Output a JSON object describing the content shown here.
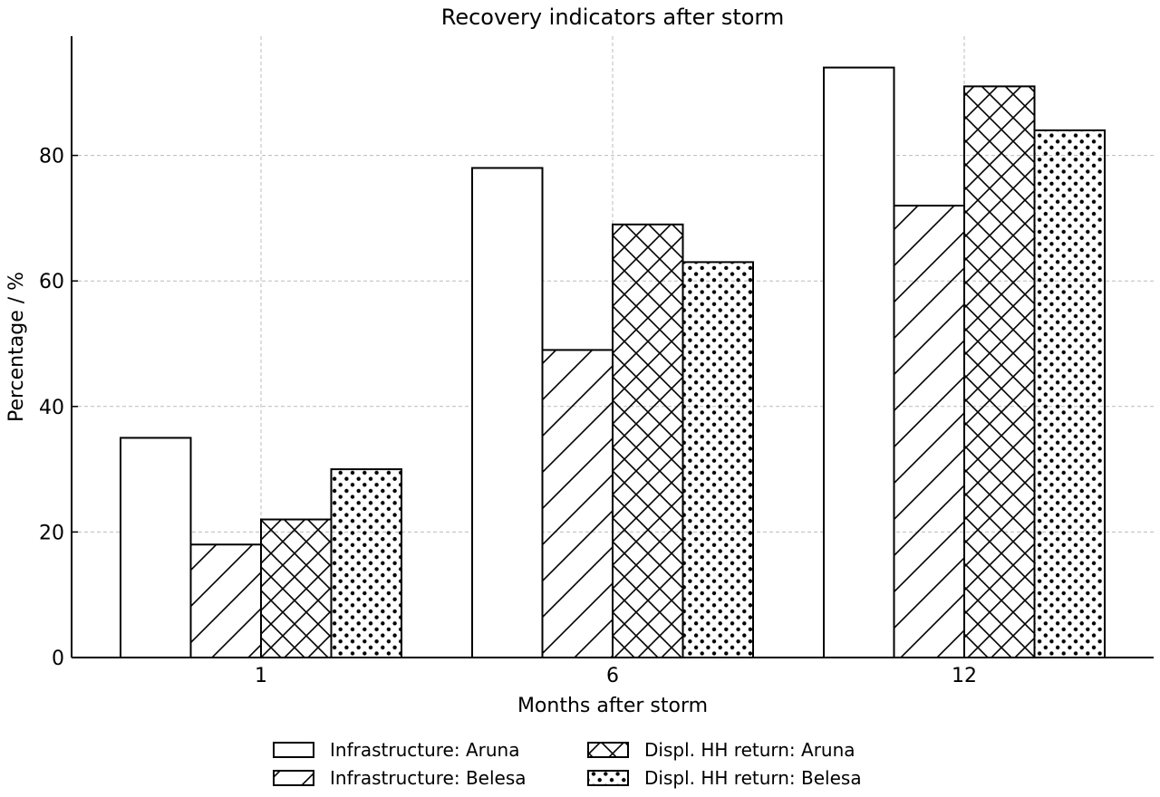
{
  "chart_data": {
    "type": "bar",
    "title": "Recovery indicators after storm",
    "xlabel": "Months after storm",
    "ylabel": "Percentage / %",
    "categories": [
      "1",
      "6",
      "12"
    ],
    "yticks": [
      0,
      20,
      40,
      60,
      80
    ],
    "ylim": [
      0,
      99
    ],
    "grid": true,
    "legend_position": "bottom-center",
    "series": [
      {
        "name": "Infrastructure: Aruna",
        "values": [
          35,
          78,
          94
        ],
        "pattern": "none"
      },
      {
        "name": "Infrastructure: Belesa",
        "values": [
          18,
          49,
          72
        ],
        "pattern": "diagonal"
      },
      {
        "name": "Displ. HH return: Aruna",
        "values": [
          22,
          69,
          91
        ],
        "pattern": "crosshatch"
      },
      {
        "name": "Displ. HH return: Belesa",
        "values": [
          30,
          63,
          84
        ],
        "pattern": "dots"
      }
    ],
    "colors": {
      "bar_fill": "#ffffff",
      "bar_edge": "#000000",
      "grid": "#bbbbbb"
    }
  }
}
